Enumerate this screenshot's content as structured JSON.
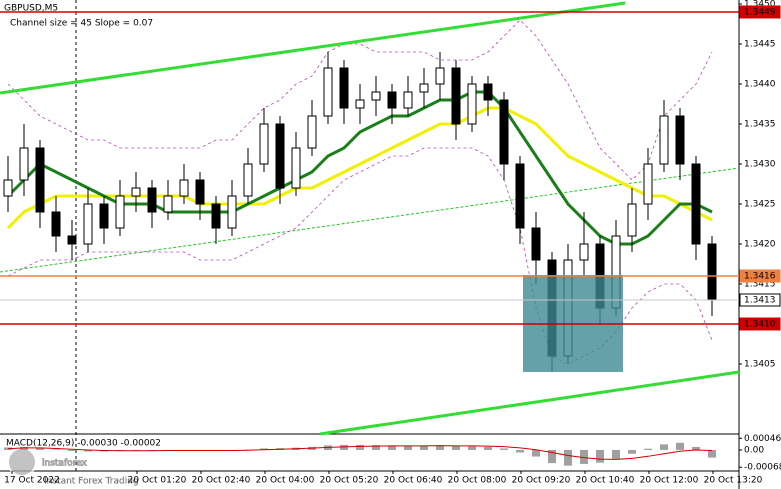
{
  "chart_data": {
    "type": "candlestick",
    "title": "GBPUSD,M5",
    "subtitle": "Channel size = 45 Slope = 0.07",
    "time_labels": [
      "17 Oct 2022",
      "20 Oct 01:20",
      "20 Oct 02:40",
      "20 Oct 04:00",
      "20 Oct 05:20",
      "20 Oct 06:40",
      "20 Oct 08:00",
      "20 Oct 09:20",
      "20 Oct 10:40",
      "20 Oct 12:00",
      "20 Oct 13:20"
    ],
    "candles": [
      [
        1.3426,
        1.3431,
        1.3424,
        1.3428
      ],
      [
        1.3428,
        1.3435,
        1.3426,
        1.3432
      ],
      [
        1.3432,
        1.3433,
        1.3422,
        1.3424
      ],
      [
        1.3424,
        1.3426,
        1.3419,
        1.3421
      ],
      [
        1.3421,
        1.3423,
        1.3418,
        1.342
      ],
      [
        1.342,
        1.3427,
        1.3419,
        1.3425
      ],
      [
        1.3425,
        1.3426,
        1.342,
        1.3422
      ],
      [
        1.3422,
        1.3428,
        1.3421,
        1.3426
      ],
      [
        1.3426,
        1.3429,
        1.3424,
        1.3427
      ],
      [
        1.3427,
        1.3428,
        1.3422,
        1.3424
      ],
      [
        1.3424,
        1.3428,
        1.3423,
        1.3426
      ],
      [
        1.3426,
        1.343,
        1.3425,
        1.3428
      ],
      [
        1.3428,
        1.3429,
        1.3423,
        1.3425
      ],
      [
        1.3425,
        1.3426,
        1.342,
        1.3422
      ],
      [
        1.3422,
        1.3428,
        1.3421,
        1.3426
      ],
      [
        1.3426,
        1.3432,
        1.3425,
        1.343
      ],
      [
        1.343,
        1.3437,
        1.3429,
        1.3435
      ],
      [
        1.3435,
        1.3436,
        1.3425,
        1.3427
      ],
      [
        1.3427,
        1.3434,
        1.3426,
        1.3432
      ],
      [
        1.3432,
        1.3438,
        1.3431,
        1.3436
      ],
      [
        1.3436,
        1.3444,
        1.3435,
        1.3442
      ],
      [
        1.3442,
        1.3443,
        1.3435,
        1.3437
      ],
      [
        1.3437,
        1.344,
        1.3435,
        1.3438
      ],
      [
        1.3438,
        1.3441,
        1.3436,
        1.3439
      ],
      [
        1.3439,
        1.344,
        1.3435,
        1.3437
      ],
      [
        1.3437,
        1.3441,
        1.3436,
        1.3439
      ],
      [
        1.3439,
        1.3442,
        1.3437,
        1.344
      ],
      [
        1.344,
        1.3444,
        1.3438,
        1.3442
      ],
      [
        1.3442,
        1.3443,
        1.3433,
        1.3435
      ],
      [
        1.3435,
        1.3441,
        1.3434,
        1.344
      ],
      [
        1.344,
        1.3441,
        1.3436,
        1.3438
      ],
      [
        1.3438,
        1.3439,
        1.3428,
        1.343
      ],
      [
        1.343,
        1.3431,
        1.342,
        1.3422
      ],
      [
        1.3422,
        1.3424,
        1.3415,
        1.3418
      ],
      [
        1.3418,
        1.3419,
        1.3404,
        1.3406
      ],
      [
        1.3406,
        1.342,
        1.3405,
        1.3418
      ],
      [
        1.3418,
        1.3424,
        1.3416,
        1.342
      ],
      [
        1.342,
        1.3421,
        1.341,
        1.3412
      ],
      [
        1.3412,
        1.3423,
        1.3411,
        1.3421
      ],
      [
        1.3421,
        1.3427,
        1.3419,
        1.3425
      ],
      [
        1.3425,
        1.3432,
        1.3423,
        1.343
      ],
      [
        1.343,
        1.3438,
        1.3429,
        1.3436
      ],
      [
        1.3436,
        1.3437,
        1.3428,
        1.343
      ],
      [
        1.343,
        1.3431,
        1.3418,
        1.342
      ],
      [
        1.342,
        1.3421,
        1.3411,
        1.3413
      ]
    ],
    "overlays": [
      {
        "color": "#c040c0",
        "style": "dashed",
        "values": [
          1.344,
          1.3438,
          1.3436,
          1.3435,
          1.3434,
          1.3433,
          1.3433,
          1.3432,
          1.3432,
          1.3432,
          1.3432,
          1.3432,
          1.3432,
          1.3433,
          1.3433,
          1.3435,
          1.3437,
          1.3438,
          1.344,
          1.3441,
          1.3444,
          1.3445,
          1.3445,
          1.3444,
          1.3444,
          1.3444,
          1.3444,
          1.3443,
          1.3443,
          1.3443,
          1.3444,
          1.3446,
          1.3448,
          1.3446,
          1.3443,
          1.344,
          1.3436,
          1.3432,
          1.343,
          1.3428,
          1.343,
          1.3436,
          1.3438,
          1.344,
          1.3444
        ]
      },
      {
        "color": "#c040c0",
        "style": "dashed",
        "values": [
          1.3416,
          1.3417,
          1.3418,
          1.3418,
          1.3418,
          1.3419,
          1.3419,
          1.3419,
          1.3419,
          1.3419,
          1.3419,
          1.3419,
          1.3418,
          1.3418,
          1.3418,
          1.3419,
          1.342,
          1.3421,
          1.3422,
          1.3424,
          1.3426,
          1.3428,
          1.3429,
          1.343,
          1.3431,
          1.3431,
          1.3432,
          1.3432,
          1.3432,
          1.3432,
          1.3431,
          1.3428,
          1.3422,
          1.3412,
          1.3406,
          1.3405,
          1.3406,
          1.3407,
          1.3409,
          1.3412,
          1.3414,
          1.3415,
          1.3415,
          1.3413,
          1.3408
        ]
      },
      {
        "color": "#f0f000",
        "style": "solid",
        "values": [
          1.3422,
          1.3424,
          1.3425,
          1.3426,
          1.3426,
          1.3426,
          1.3426,
          1.3426,
          1.3426,
          1.3426,
          1.3426,
          1.3426,
          1.3425,
          1.3425,
          1.3425,
          1.3425,
          1.3425,
          1.3426,
          1.3427,
          1.3427,
          1.3428,
          1.3429,
          1.343,
          1.3431,
          1.3432,
          1.3433,
          1.3434,
          1.3435,
          1.3435,
          1.3436,
          1.3437,
          1.3437,
          1.3436,
          1.3435,
          1.3433,
          1.3431,
          1.343,
          1.3429,
          1.3428,
          1.3427,
          1.3426,
          1.3426,
          1.3425,
          1.3424,
          1.3423
        ]
      },
      {
        "color": "#1a7f1a",
        "style": "solid",
        "values": [
          1.3426,
          1.3428,
          1.343,
          1.3429,
          1.3428,
          1.3427,
          1.3426,
          1.3425,
          1.3425,
          1.3425,
          1.3424,
          1.3424,
          1.3424,
          1.3424,
          1.3424,
          1.3425,
          1.3426,
          1.3427,
          1.3428,
          1.3429,
          1.3431,
          1.3432,
          1.3434,
          1.3435,
          1.3436,
          1.3436,
          1.3437,
          1.3438,
          1.3438,
          1.3439,
          1.3439,
          1.3437,
          1.3434,
          1.3431,
          1.3428,
          1.3425,
          1.3423,
          1.3421,
          1.342,
          1.342,
          1.3421,
          1.3423,
          1.3425,
          1.3425,
          1.3424
        ]
      }
    ],
    "ylim": [
      1.33965,
      1.34505
    ],
    "yticks": [
      {
        "value": 1.345,
        "label": "1.3450"
      },
      1.3445,
      {
        "value": 1.344,
        "label": "1.3440"
      },
      1.3435,
      {
        "value": 1.343,
        "label": "1.3430"
      },
      1.3425,
      {
        "value": 1.342,
        "label": "1.3420"
      },
      1.3415,
      1.3405
    ],
    "levels": [
      {
        "value": 1.3449,
        "label": "1.3449",
        "line_color": "#d00000",
        "box_color": "#d00000"
      },
      {
        "value": 1.3416,
        "label": "1.3416",
        "line_color": "#f08040",
        "box_color": "#f08040"
      },
      {
        "value": 1.3413,
        "label": "1.3413",
        "line_color": "#c8c8c8",
        "box_color": "#ffffff"
      },
      {
        "value": 1.341,
        "label": "1.3410",
        "line_color": "#d00000",
        "box_color": "#d00000"
      }
    ],
    "macd": {
      "title": "MACD(12,26,9) -0.00030 -0.00002",
      "color": "#a0a0a0",
      "signal_color": "#d00000",
      "histogram": [
        0.0001,
        0.00012,
        8e-05,
        2e-05,
        -4e-05,
        -6e-05,
        -6e-05,
        -4e-05,
        -2e-05,
        -2e-05,
        -1e-05,
        0,
        -1e-05,
        -3e-05,
        -2e-05,
        1e-05,
        6e-05,
        7e-05,
        9e-05,
        0.00012,
        0.00018,
        0.0002,
        0.0002,
        0.00019,
        0.00018,
        0.00017,
        0.00017,
        0.00018,
        0.00015,
        0.00014,
        0.00012,
        6e-05,
        -0.0001,
        -0.00026,
        -0.00052,
        -0.00062,
        -0.00055,
        -0.0005,
        -0.00035,
        -0.00015,
        5e-05,
        0.00022,
        0.00028,
        0.00012,
        -0.0003
      ],
      "signal": [
        5e-05,
        8e-05,
        8e-05,
        6e-05,
        3e-05,
        0,
        -2e-05,
        -3e-05,
        -3e-05,
        -3e-05,
        -2e-05,
        -2e-05,
        -2e-05,
        -2e-05,
        -2e-05,
        -1e-05,
        1e-05,
        3e-05,
        5e-05,
        7e-05,
        0.0001,
        0.00012,
        0.00014,
        0.00015,
        0.00016,
        0.00016,
        0.00016,
        0.00017,
        0.00016,
        0.00016,
        0.00015,
        0.00013,
        8e-05,
        1e-05,
        -0.0001,
        -0.00022,
        -0.0003,
        -0.00036,
        -0.00037,
        -0.00033,
        -0.00025,
        -0.00015,
        -5e-05,
        0,
        -2e-05
      ],
      "ylim": [
        -0.00075,
        0.00055
      ],
      "yticks": [
        0.00046,
        {
          "value": 0,
          "label": "0.00"
        },
        -0.00068
      ]
    }
  },
  "watermark": {
    "brand": "instaforex",
    "tagline": "Instant Forex Trading"
  }
}
